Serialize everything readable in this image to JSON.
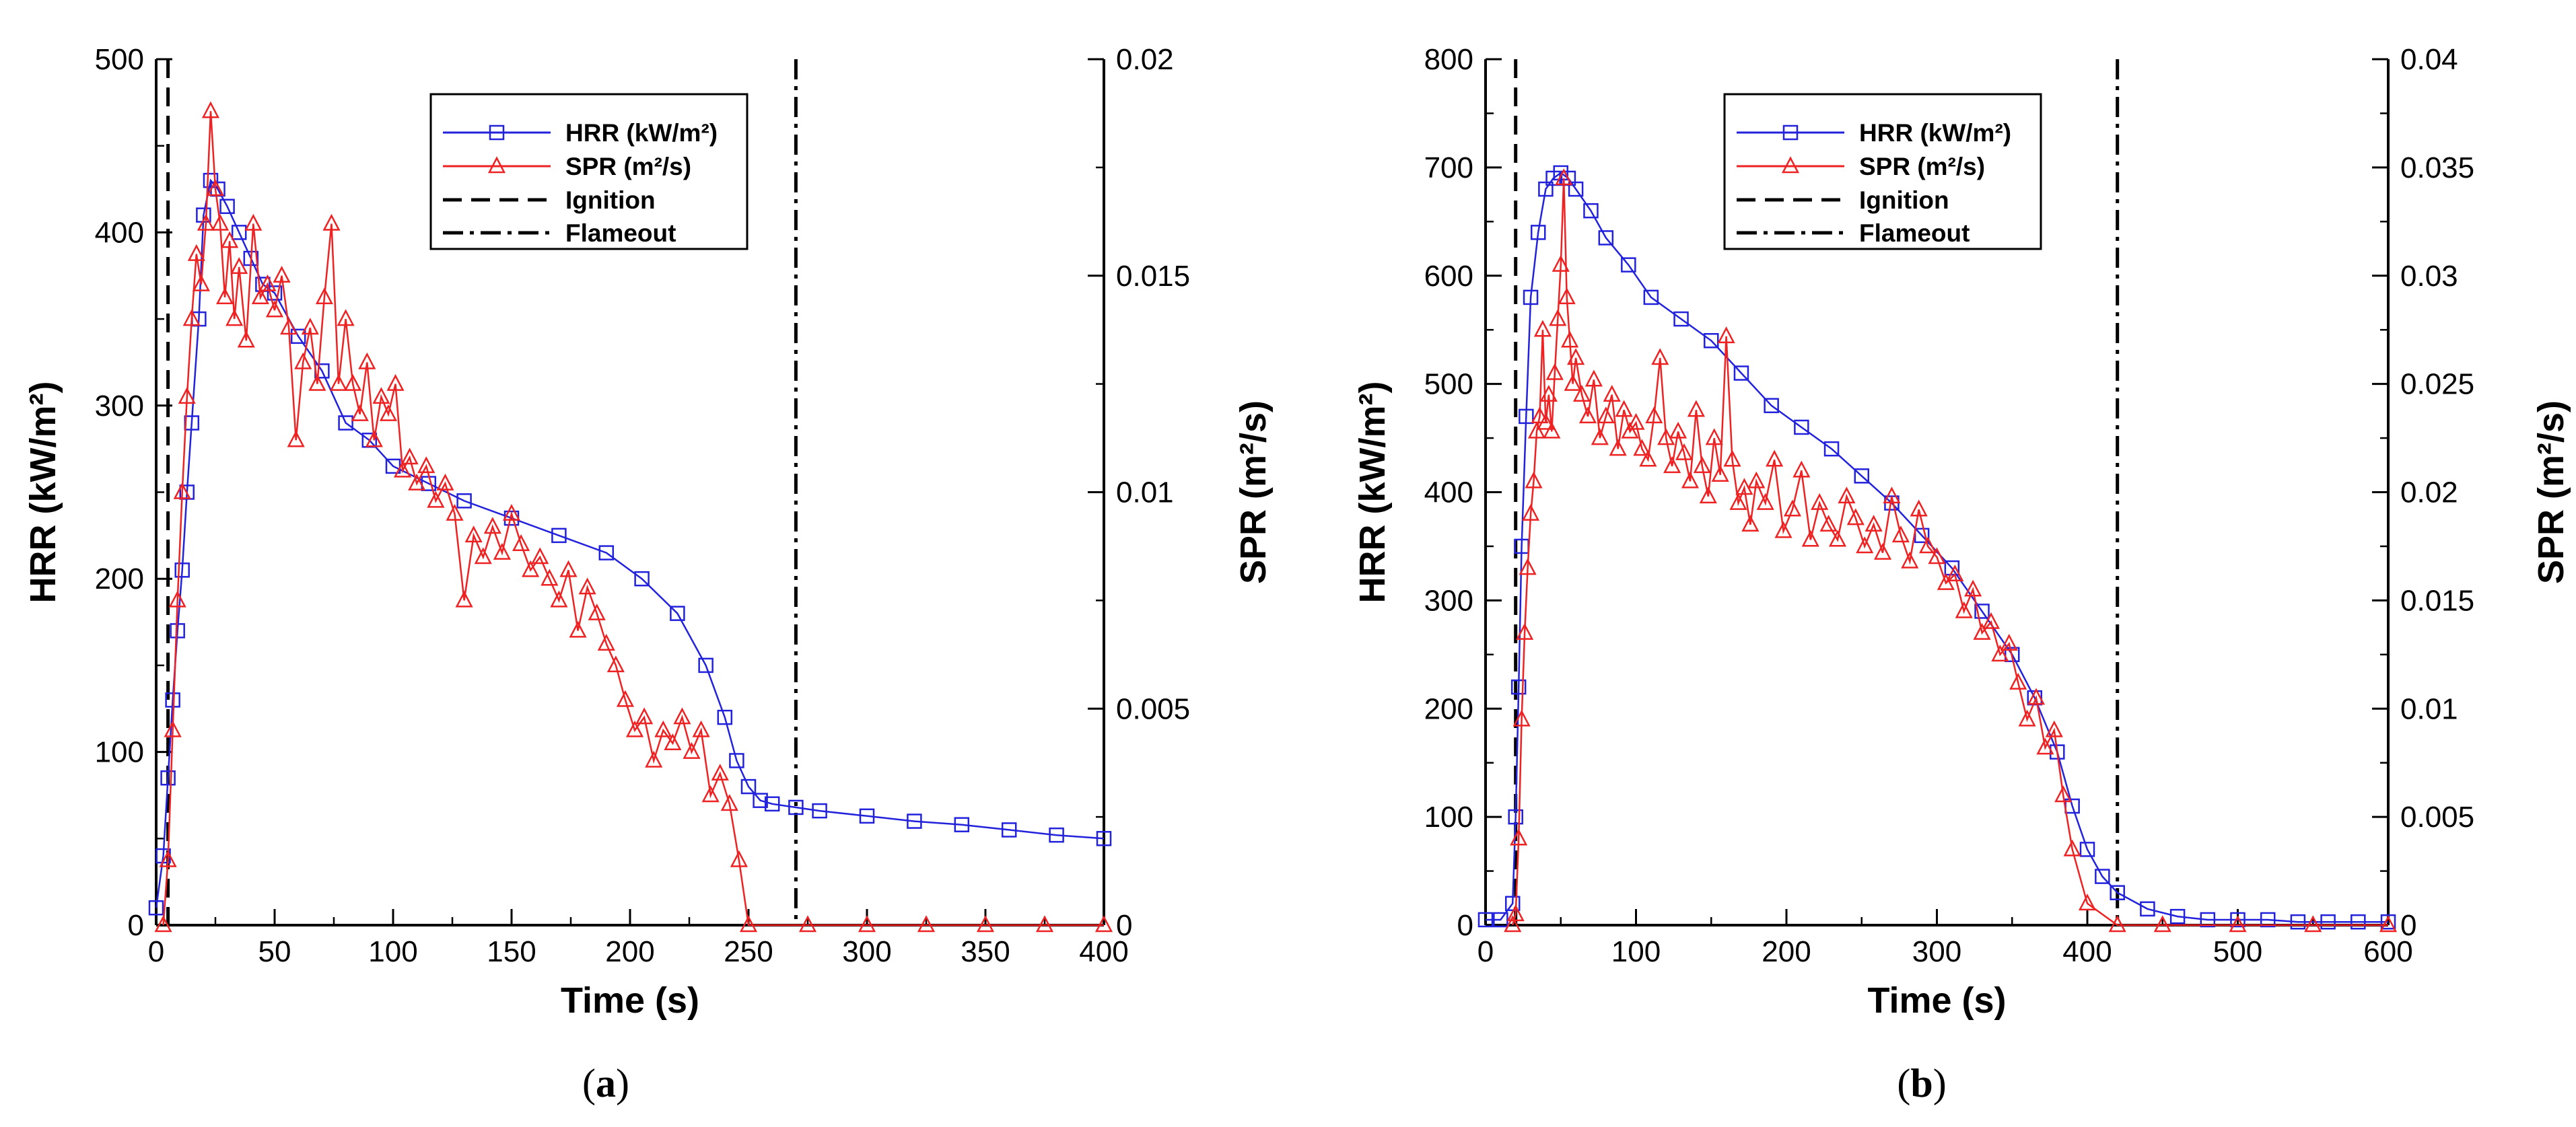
{
  "chart_data": [
    {
      "type": "line",
      "panel_label": "a",
      "xlabel": "Time (s)",
      "ylabel": "HRR (kW/m²)",
      "y2label": "SPR (m²/s)",
      "xlim": [
        0,
        400
      ],
      "ylim": [
        0,
        500
      ],
      "y2lim": [
        0,
        0.02
      ],
      "xticks": [
        "0",
        "50",
        "100",
        "150",
        "200",
        "250",
        "300",
        "350",
        "400"
      ],
      "yticks": [
        "0",
        "100",
        "200",
        "300",
        "400",
        "500"
      ],
      "y2ticks": [
        "0",
        "0.005",
        "0.01",
        "0.015",
        "0.02"
      ],
      "legend": {
        "position": "top-center",
        "entries": [
          "HRR (kW/m²)",
          "SPR (m²/s)",
          "Ignition",
          "Flameout"
        ]
      },
      "ignition_x": 5,
      "flameout_x": 270,
      "series": [
        {
          "name": "HRR (kW/m²)",
          "color": "#2222dd",
          "marker": "square",
          "axis": "left",
          "x": [
            0,
            3,
            5,
            7,
            9,
            11,
            13,
            15,
            18,
            20,
            23,
            26,
            30,
            35,
            40,
            45,
            50,
            60,
            70,
            80,
            90,
            100,
            115,
            130,
            150,
            170,
            190,
            205,
            220,
            232,
            240,
            245,
            250,
            255,
            260,
            270,
            280,
            300,
            320,
            340,
            360,
            380,
            400
          ],
          "y": [
            10,
            40,
            85,
            130,
            170,
            205,
            250,
            290,
            350,
            410,
            430,
            425,
            415,
            400,
            385,
            370,
            365,
            340,
            320,
            290,
            280,
            265,
            255,
            245,
            235,
            225,
            215,
            200,
            180,
            150,
            120,
            95,
            80,
            72,
            70,
            68,
            66,
            63,
            60,
            58,
            55,
            52,
            50
          ]
        },
        {
          "name": "SPR (m²/s)",
          "color": "#ee2222",
          "marker": "triangle",
          "axis": "right",
          "x": [
            3,
            5,
            7,
            9,
            11,
            13,
            15,
            17,
            19,
            21,
            23,
            25,
            27,
            29,
            31,
            33,
            35,
            38,
            41,
            44,
            47,
            50,
            53,
            56,
            59,
            62,
            65,
            68,
            71,
            74,
            77,
            80,
            83,
            86,
            89,
            92,
            95,
            98,
            101,
            104,
            107,
            110,
            114,
            118,
            122,
            126,
            130,
            134,
            138,
            142,
            146,
            150,
            154,
            158,
            162,
            166,
            170,
            174,
            178,
            182,
            186,
            190,
            194,
            198,
            202,
            206,
            210,
            214,
            218,
            222,
            226,
            230,
            234,
            238,
            242,
            246,
            250,
            275,
            300,
            325,
            350,
            375,
            400
          ],
          "y": [
            0,
            0.0015,
            0.0045,
            0.0075,
            0.01,
            0.0122,
            0.014,
            0.0155,
            0.0148,
            0.0162,
            0.0188,
            0.017,
            0.0162,
            0.0145,
            0.0158,
            0.014,
            0.0152,
            0.0135,
            0.0162,
            0.0145,
            0.0148,
            0.0142,
            0.015,
            0.0138,
            0.0112,
            0.013,
            0.0138,
            0.0125,
            0.0145,
            0.0162,
            0.0125,
            0.014,
            0.0125,
            0.0118,
            0.013,
            0.0112,
            0.0122,
            0.0118,
            0.0125,
            0.0105,
            0.0108,
            0.0102,
            0.0106,
            0.0098,
            0.0102,
            0.0095,
            0.0075,
            0.009,
            0.0085,
            0.0092,
            0.0086,
            0.0095,
            0.0088,
            0.0082,
            0.0085,
            0.008,
            0.0075,
            0.0082,
            0.0068,
            0.0078,
            0.0072,
            0.0065,
            0.006,
            0.0052,
            0.0045,
            0.0048,
            0.0038,
            0.0045,
            0.0042,
            0.0048,
            0.004,
            0.0045,
            0.003,
            0.0035,
            0.0028,
            0.0015,
            0,
            0,
            0,
            0,
            0,
            0,
            0
          ]
        }
      ]
    },
    {
      "type": "line",
      "panel_label": "b",
      "xlabel": "Time (s)",
      "ylabel": "HRR (kW/m²)",
      "y2label": "SPR (m²/s)",
      "xlim": [
        0,
        600
      ],
      "ylim": [
        0,
        800
      ],
      "y2lim": [
        0,
        0.04
      ],
      "xticks": [
        "0",
        "100",
        "200",
        "300",
        "400",
        "500",
        "600"
      ],
      "yticks": [
        "0",
        "100",
        "200",
        "300",
        "400",
        "500",
        "600",
        "700",
        "800"
      ],
      "y2ticks": [
        "0",
        "0.005",
        "0.01",
        "0.015",
        "0.02",
        "0.025",
        "0.03",
        "0.035",
        "0.04"
      ],
      "legend": {
        "position": "top-center",
        "entries": [
          "HRR (kW/m²)",
          "SPR (m²/s)",
          "Ignition",
          "Flameout"
        ]
      },
      "ignition_x": 20,
      "flameout_x": 420,
      "series": [
        {
          "name": "HRR (kW/m²)",
          "color": "#2222dd",
          "marker": "square",
          "axis": "left",
          "x": [
            0,
            10,
            18,
            20,
            22,
            24,
            27,
            30,
            35,
            40,
            45,
            50,
            55,
            60,
            70,
            80,
            95,
            110,
            130,
            150,
            170,
            190,
            210,
            230,
            250,
            270,
            290,
            310,
            330,
            350,
            365,
            380,
            390,
            400,
            410,
            420,
            440,
            460,
            480,
            500,
            520,
            540,
            560,
            580,
            600
          ],
          "y": [
            5,
            5,
            20,
            100,
            220,
            350,
            470,
            580,
            640,
            680,
            690,
            695,
            690,
            680,
            660,
            635,
            610,
            580,
            560,
            540,
            510,
            480,
            460,
            440,
            415,
            390,
            360,
            330,
            290,
            250,
            210,
            160,
            110,
            70,
            45,
            30,
            15,
            8,
            5,
            5,
            5,
            3,
            3,
            3,
            3
          ]
        },
        {
          "name": "SPR (m²/s)",
          "color": "#ee2222",
          "marker": "triangle",
          "axis": "right",
          "x": [
            18,
            20,
            22,
            24,
            26,
            28,
            30,
            32,
            34,
            36,
            38,
            40,
            42,
            44,
            46,
            48,
            50,
            52,
            54,
            56,
            58,
            60,
            64,
            68,
            72,
            76,
            80,
            84,
            88,
            92,
            96,
            100,
            104,
            108,
            112,
            116,
            120,
            124,
            128,
            132,
            136,
            140,
            144,
            148,
            152,
            156,
            160,
            164,
            168,
            172,
            176,
            180,
            186,
            192,
            198,
            204,
            210,
            216,
            222,
            228,
            234,
            240,
            246,
            252,
            258,
            264,
            270,
            276,
            282,
            288,
            294,
            300,
            306,
            312,
            318,
            324,
            330,
            336,
            342,
            348,
            354,
            360,
            366,
            372,
            378,
            384,
            390,
            400,
            420,
            450,
            500,
            550,
            600
          ],
          "y": [
            0,
            0.0005,
            0.004,
            0.0095,
            0.0135,
            0.0165,
            0.019,
            0.0205,
            0.0228,
            0.0235,
            0.0275,
            0.0232,
            0.0245,
            0.0228,
            0.0255,
            0.028,
            0.0305,
            0.0345,
            0.029,
            0.027,
            0.025,
            0.0262,
            0.0245,
            0.0235,
            0.0252,
            0.0225,
            0.0235,
            0.0245,
            0.022,
            0.0238,
            0.0228,
            0.0232,
            0.022,
            0.0215,
            0.0235,
            0.0262,
            0.0225,
            0.0212,
            0.0228,
            0.0218,
            0.0205,
            0.0238,
            0.0212,
            0.0198,
            0.0225,
            0.0208,
            0.0272,
            0.0215,
            0.0195,
            0.0202,
            0.0185,
            0.0205,
            0.0195,
            0.0215,
            0.0182,
            0.0192,
            0.021,
            0.0178,
            0.0195,
            0.0185,
            0.0178,
            0.0198,
            0.0188,
            0.0175,
            0.0185,
            0.0172,
            0.0198,
            0.018,
            0.0168,
            0.0192,
            0.0175,
            0.017,
            0.0158,
            0.0162,
            0.0145,
            0.0155,
            0.0135,
            0.014,
            0.0125,
            0.013,
            0.0112,
            0.0095,
            0.0105,
            0.0082,
            0.009,
            0.006,
            0.0035,
            0.001,
            0,
            0,
            0,
            0,
            0
          ]
        }
      ]
    }
  ]
}
